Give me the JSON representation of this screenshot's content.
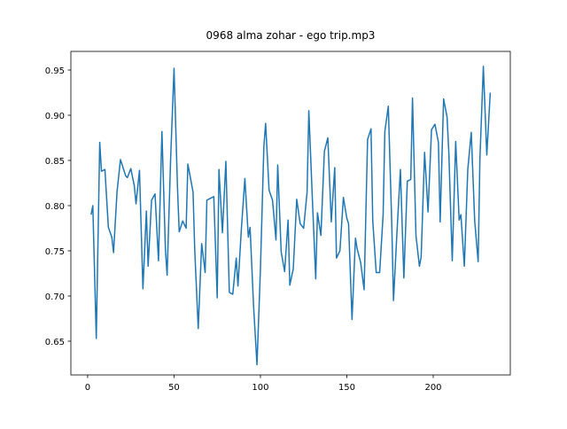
{
  "chart_data": {
    "type": "line",
    "title": "0968 alma zohar - ego trip.mp3",
    "x": [
      2,
      3,
      5,
      7,
      8,
      10,
      12,
      14,
      15,
      17,
      19,
      22,
      23,
      25,
      27,
      28,
      30,
      32,
      34,
      35,
      37,
      39,
      41,
      43,
      45,
      46,
      48,
      50,
      52,
      53,
      55,
      57,
      58,
      61,
      62,
      64,
      66,
      68,
      69,
      71,
      73,
      75,
      76,
      78,
      80,
      82,
      84,
      86,
      87,
      89,
      91,
      93,
      94,
      96,
      98,
      100,
      102,
      103,
      105,
      107,
      109,
      110,
      112,
      114,
      116,
      117,
      119,
      121,
      123,
      125,
      127,
      128,
      130,
      132,
      133,
      135,
      137,
      139,
      141,
      143,
      144,
      146,
      148,
      150,
      151,
      153,
      155,
      156,
      158,
      160,
      162,
      164,
      165,
      167,
      169,
      171,
      172,
      174,
      176,
      177,
      179,
      181,
      183,
      185,
      187,
      188,
      190,
      192,
      193,
      195,
      197,
      199,
      201,
      203,
      204,
      206,
      208,
      209,
      211,
      213,
      215,
      216,
      218,
      220,
      222,
      224,
      226,
      227,
      229,
      231,
      233
    ],
    "series": [
      {
        "color": "#1f77b4",
        "values": [
          0.79,
          0.8,
          0.653,
          0.87,
          0.838,
          0.84,
          0.776,
          0.765,
          0.748,
          0.815,
          0.851,
          0.833,
          0.831,
          0.841,
          0.822,
          0.802,
          0.839,
          0.708,
          0.794,
          0.733,
          0.806,
          0.813,
          0.739,
          0.882,
          0.752,
          0.723,
          0.85,
          0.952,
          0.82,
          0.771,
          0.783,
          0.775,
          0.846,
          0.815,
          0.75,
          0.664,
          0.758,
          0.726,
          0.806,
          0.808,
          0.81,
          0.698,
          0.84,
          0.77,
          0.849,
          0.704,
          0.702,
          0.742,
          0.711,
          0.775,
          0.83,
          0.765,
          0.776,
          0.69,
          0.624,
          0.73,
          0.866,
          0.891,
          0.817,
          0.806,
          0.762,
          0.845,
          0.749,
          0.727,
          0.784,
          0.712,
          0.73,
          0.807,
          0.78,
          0.775,
          0.815,
          0.905,
          0.81,
          0.719,
          0.792,
          0.767,
          0.86,
          0.875,
          0.782,
          0.842,
          0.742,
          0.75,
          0.809,
          0.786,
          0.78,
          0.674,
          0.764,
          0.752,
          0.737,
          0.707,
          0.873,
          0.885,
          0.783,
          0.726,
          0.726,
          0.79,
          0.882,
          0.91,
          0.78,
          0.695,
          0.77,
          0.84,
          0.72,
          0.827,
          0.829,
          0.919,
          0.767,
          0.733,
          0.743,
          0.859,
          0.793,
          0.884,
          0.89,
          0.87,
          0.782,
          0.918,
          0.898,
          0.86,
          0.739,
          0.871,
          0.784,
          0.79,
          0.733,
          0.84,
          0.881,
          0.783,
          0.738,
          0.851,
          0.954,
          0.856,
          0.925
        ]
      }
    ],
    "xlim": [
      -9.7,
      244.6
    ],
    "ylim": [
      0.6127,
      0.9706
    ],
    "xticks": [
      0,
      50,
      100,
      150,
      200
    ],
    "yticks": [
      0.65,
      {
        "value": 0.7,
        "label": "0.70"
      },
      0.75,
      {
        "value": 0.8,
        "label": "0.80"
      },
      0.85,
      {
        "value": 0.9,
        "label": "0.90"
      },
      0.95
    ]
  }
}
